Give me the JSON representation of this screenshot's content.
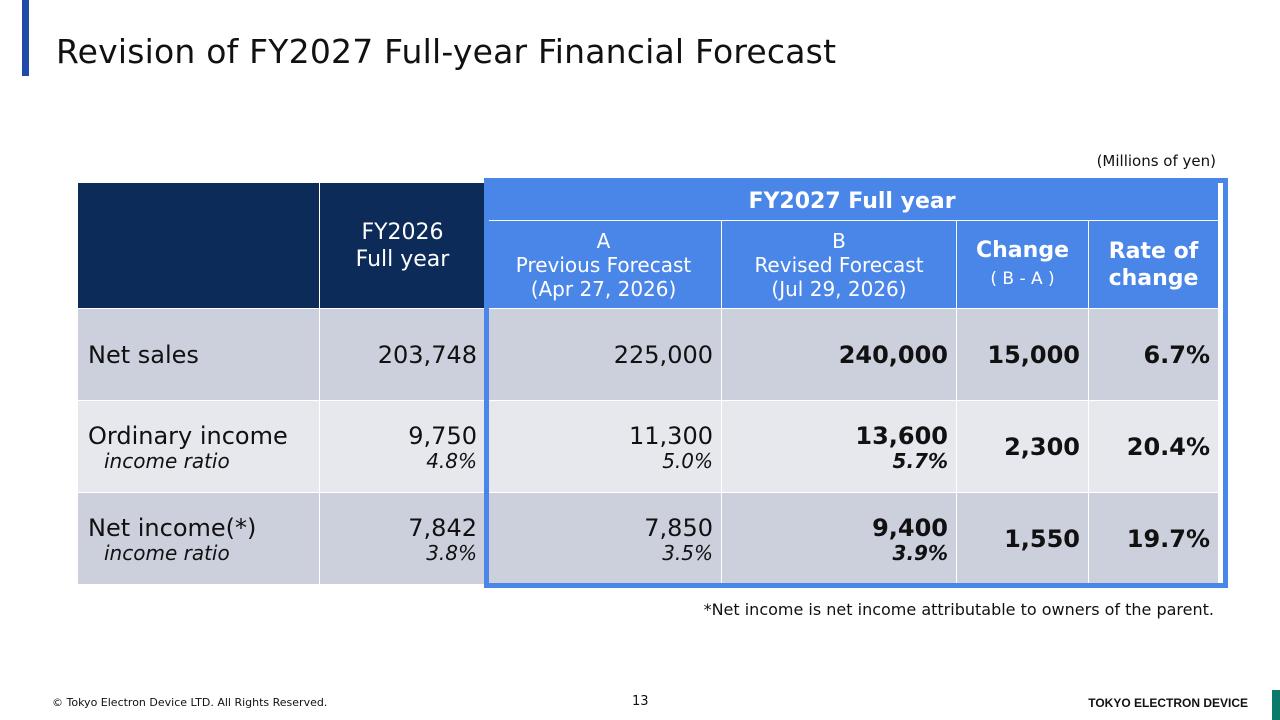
{
  "page": {
    "title": "Revision of FY2027 Full-year Financial Forecast",
    "unit": "(Millions of yen)",
    "note": "*Net income is net income attributable to owners of the parent.",
    "copyright": "© Tokyo Electron Device LTD. All Rights Reserved.",
    "page_number": "13",
    "brand": "TOKYO ELECTRON DEVICE"
  },
  "table": {
    "header": {
      "fy2026": "FY2026\nFull year",
      "fy2027_group": "FY2027 Full year",
      "col_a": "A\nPrevious Forecast\n(Apr 27, 2026)",
      "col_b": "B\nRevised Forecast\n(Jul 29, 2026)",
      "col_change": "Change",
      "col_change_sub": "( B - A )",
      "col_rate": "Rate of\nchange"
    },
    "rows": [
      {
        "label": "Net sales",
        "sublabel": "",
        "fy2026": "203,748",
        "fy2026_ratio": "",
        "prev": "225,000",
        "prev_ratio": "",
        "revised": "240,000",
        "revised_ratio": "",
        "change": "15,000",
        "rate": "6.7%"
      },
      {
        "label": "Ordinary income",
        "sublabel": "income ratio",
        "fy2026": "9,750",
        "fy2026_ratio": "4.8%",
        "prev": "11,300",
        "prev_ratio": "5.0%",
        "revised": "13,600",
        "revised_ratio": "5.7%",
        "change": "2,300",
        "rate": "20.4%"
      },
      {
        "label": "Net income(*)",
        "sublabel": "income ratio",
        "fy2026": "7,842",
        "fy2026_ratio": "3.8%",
        "prev": "7,850",
        "prev_ratio": "3.5%",
        "revised": "9,400",
        "revised_ratio": "3.9%",
        "change": "1,550",
        "rate": "19.7%"
      }
    ]
  },
  "colors": {
    "navy": "#0c2b59",
    "blue": "#4a86e8",
    "row_dark": "#ccd0dd",
    "row_light": "#e6e8ee"
  }
}
